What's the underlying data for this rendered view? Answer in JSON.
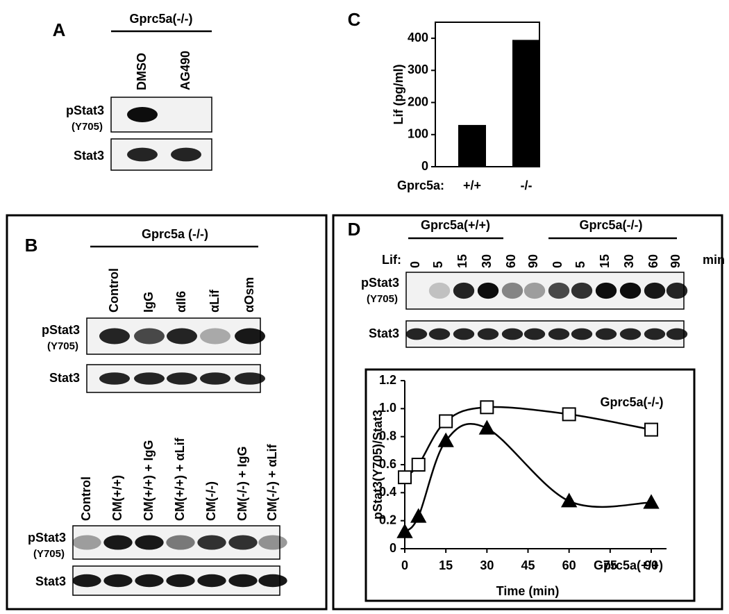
{
  "panel_a": {
    "label": "A",
    "group": "Gprc5a(-/-)",
    "lanes": [
      "DMSO",
      "AG490"
    ],
    "rows": [
      {
        "name": "pStat3",
        "note": "(Y705)"
      },
      {
        "name": "Stat3"
      }
    ]
  },
  "panel_b": {
    "label": "B",
    "group": "Gprc5a (-/-)",
    "top_lanes": [
      "Control",
      "IgG",
      "αIl6",
      "αLif",
      "αOsm"
    ],
    "top_rows": [
      {
        "name": "pStat3",
        "note": "(Y705)"
      },
      {
        "name": "Stat3"
      }
    ],
    "bottom_lanes": [
      "Control",
      "CM(+/+)",
      "CM(+/+) + IgG",
      "CM(+/+) + αLif",
      "CM(-/-)",
      "CM(-/-) + IgG",
      "CM(-/-) + αLif"
    ],
    "bottom_rows": [
      {
        "name": "pStat3",
        "note": "(Y705)"
      },
      {
        "name": "Stat3"
      }
    ]
  },
  "panel_d_blot": {
    "label": "D",
    "groups": [
      "Gprc5a(+/+)",
      "Gprc5a(-/-)"
    ],
    "treatment": "Lif:",
    "times": [
      0,
      5,
      15,
      30,
      60,
      90,
      0,
      5,
      15,
      30,
      60,
      90
    ],
    "time_unit": "min",
    "rows": [
      {
        "name": "pStat3",
        "note": "(Y705)"
      },
      {
        "name": "Stat3"
      }
    ]
  },
  "chart_data": [
    {
      "type": "bar",
      "panel_label": "C",
      "ylabel": "Lif (pg/ml)",
      "xlabel": "Gprc5a:",
      "categories": [
        "+/+",
        "-/-"
      ],
      "values": [
        130,
        395
      ],
      "color": "#000000",
      "ylim": [
        0,
        450
      ],
      "yticks": [
        0,
        100,
        200,
        300,
        400
      ]
    },
    {
      "type": "line",
      "ylabel": "pStat3(Y705)/Stat3",
      "xlabel": "Time (min)",
      "x": [
        0,
        5,
        15,
        30,
        60,
        90
      ],
      "xlim": [
        0,
        90
      ],
      "xticks": [
        0,
        15,
        30,
        45,
        60,
        75,
        90
      ],
      "ylim": [
        0,
        1.2
      ],
      "yticks": [
        0,
        0.2,
        0.4,
        0.6,
        0.8,
        {
          "value": 1,
          "label": "1.0"
        },
        1.2
      ],
      "series": [
        {
          "name": "Gprc5a(-/-)",
          "color": "#000000",
          "marker": "square",
          "values": [
            0.51,
            0.6,
            0.91,
            1.01,
            0.96,
            0.85
          ]
        },
        {
          "name": "Gprc5a(+/+)",
          "color": "#000000",
          "marker": "triangle",
          "values": [
            0.12,
            0.23,
            0.77,
            0.86,
            0.34,
            0.33
          ]
        }
      ]
    }
  ]
}
